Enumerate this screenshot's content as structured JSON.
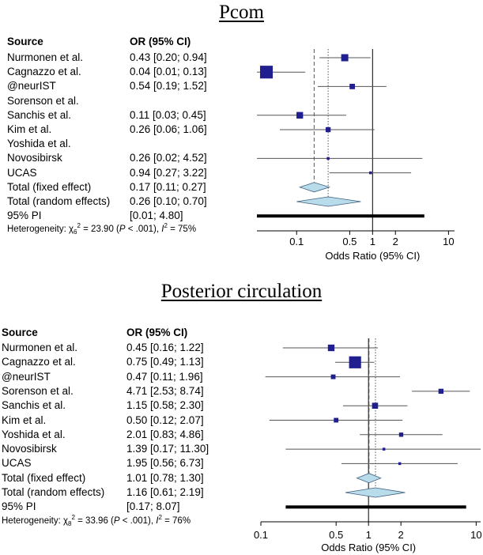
{
  "colors": {
    "square": "#1f1f8f",
    "diamond": "#b9dcea",
    "diamond_stroke": "#3f5f7f",
    "line": "#555555"
  },
  "chart_data": [
    {
      "type": "forest",
      "title": "Pcom",
      "header_source": "Source",
      "header_or": "OR (95% CI)",
      "xlabel": "Odds Ratio (95% CI)",
      "xscale": "log",
      "xlim": [
        0.03,
        12
      ],
      "xticks": [
        0.1,
        0.5,
        1,
        2,
        10
      ],
      "xtick_labels": [
        "0.1",
        "0.5",
        "1",
        "2",
        "10"
      ],
      "studies": [
        {
          "name": "Nurmonen et al.",
          "ci_text": "0.43 [0.20; 0.94]",
          "or": 0.43,
          "lo": 0.2,
          "hi": 0.94,
          "weight": 0.14
        },
        {
          "name": "Cagnazzo et al.",
          "ci_text": "0.04 [0.01; 0.13]",
          "or": 0.04,
          "lo": 0.01,
          "hi": 0.13,
          "weight": 0.45
        },
        {
          "name": "@neurIST",
          "ci_text": "0.54 [0.19; 1.52]",
          "or": 0.54,
          "lo": 0.19,
          "hi": 1.52,
          "weight": 0.08
        },
        {
          "name": "Sorenson et al.",
          "ci_text": "",
          "or": null
        },
        {
          "name": "Sanchis et al.",
          "ci_text": "0.11 [0.03; 0.45]",
          "or": 0.11,
          "lo": 0.03,
          "hi": 0.45,
          "weight": 0.12
        },
        {
          "name": "Kim et al.",
          "ci_text": "0.26 [0.06; 1.06]",
          "or": 0.26,
          "lo": 0.06,
          "hi": 1.06,
          "weight": 0.07
        },
        {
          "name": "Yoshida et al.",
          "ci_text": "",
          "or": null
        },
        {
          "name": "Novosibirsk",
          "ci_text": "0.26 [0.02; 4.52]",
          "or": 0.26,
          "lo": 0.02,
          "hi": 4.52,
          "weight": 0.02
        },
        {
          "name": "UCAS",
          "ci_text": "0.94 [0.27; 3.22]",
          "or": 0.94,
          "lo": 0.27,
          "hi": 3.22,
          "weight": 0.02
        }
      ],
      "fixed": {
        "name": "Total (fixed effect)",
        "ci_text": "0.17 [0.11; 0.27]",
        "or": 0.17,
        "lo": 0.11,
        "hi": 0.27
      },
      "random": {
        "name": "Total (random effects)",
        "ci_text": "0.26 [0.10; 0.70]",
        "or": 0.26,
        "lo": 0.1,
        "hi": 0.7
      },
      "pi": {
        "name": "95% PI",
        "ci_text": "[0.01; 4.80]",
        "lo": 0.01,
        "hi": 4.8
      },
      "heterogeneity": {
        "prefix": "Heterogeneity: ",
        "chi_symbol": "χ",
        "df": "6",
        "chi_value": " = 23.90 (",
        "p_label": "P",
        "p_value": " < .001), ",
        "i_label": "I",
        "i_value": " = 75%"
      }
    },
    {
      "type": "forest",
      "title": "Posterior circulation",
      "header_source": "Source",
      "header_or": "OR (95% CI)",
      "xlabel": "Odds Ratio (95% CI)",
      "xscale": "log",
      "xlim": [
        0.1,
        11
      ],
      "xticks": [
        0.1,
        0.5,
        1,
        2,
        10
      ],
      "xtick_labels": [
        "0.1",
        "0.5",
        "1",
        "2",
        "10"
      ],
      "studies": [
        {
          "name": "Nurmonen et al.",
          "ci_text": "0.45 [0.16;  1.22]",
          "or": 0.45,
          "lo": 0.16,
          "hi": 1.22,
          "weight": 0.12
        },
        {
          "name": "Cagnazzo et al.",
          "ci_text": "0.75 [0.49;  1.13]",
          "or": 0.75,
          "lo": 0.49,
          "hi": 1.13,
          "weight": 0.4
        },
        {
          "name": "@neurIST",
          "ci_text": "0.47 [0.11;  1.96]",
          "or": 0.47,
          "lo": 0.11,
          "hi": 1.96,
          "weight": 0.06
        },
        {
          "name": "Sorenson et al.",
          "ci_text": "4.71 [2.53;  8.74]",
          "or": 4.71,
          "lo": 2.53,
          "hi": 8.74,
          "weight": 0.07
        },
        {
          "name": "Sanchis et al.",
          "ci_text": "1.15 [0.58;  2.30]",
          "or": 1.15,
          "lo": 0.58,
          "hi": 2.3,
          "weight": 0.1
        },
        {
          "name": "Kim et al.",
          "ci_text": "0.50 [0.12;  2.07]",
          "or": 0.5,
          "lo": 0.12,
          "hi": 2.07,
          "weight": 0.06
        },
        {
          "name": "Yoshida et al.",
          "ci_text": "2.01 [0.83;  4.86]",
          "or": 2.01,
          "lo": 0.83,
          "hi": 4.86,
          "weight": 0.05
        },
        {
          "name": "Novosibirsk",
          "ci_text": "1.39 [0.17; 11.30]",
          "or": 1.39,
          "lo": 0.17,
          "hi": 11.3,
          "weight": 0.01
        },
        {
          "name": "UCAS",
          "ci_text": "1.95 [0.56;  6.73]",
          "or": 1.95,
          "lo": 0.56,
          "hi": 6.73,
          "weight": 0.02
        }
      ],
      "fixed": {
        "name": "Total (fixed effect)",
        "ci_text": "1.01 [0.78;  1.30]",
        "or": 1.01,
        "lo": 0.78,
        "hi": 1.3
      },
      "random": {
        "name": "Total (random effects)",
        "ci_text": "1.16 [0.61;  2.19]",
        "or": 1.16,
        "lo": 0.61,
        "hi": 2.19
      },
      "pi": {
        "name": "95% PI",
        "ci_text": "[0.17;  8.07]",
        "lo": 0.17,
        "hi": 8.07
      },
      "heterogeneity": {
        "prefix": "Heterogeneity: ",
        "chi_symbol": "χ",
        "df": "8",
        "chi_value": " = 33.96 (",
        "p_label": "P",
        "p_value": " < .001), ",
        "i_label": "I",
        "i_value": " = 76%"
      }
    }
  ]
}
